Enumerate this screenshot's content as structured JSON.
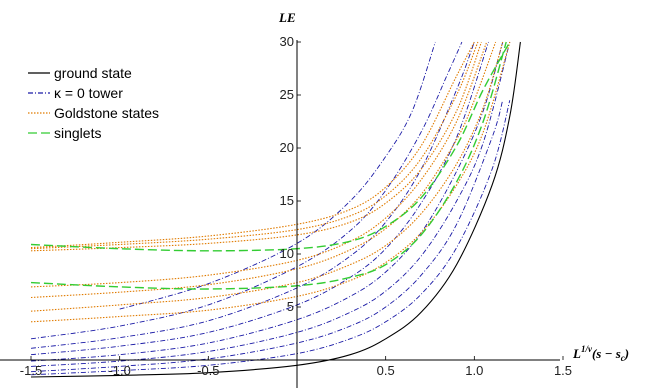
{
  "chart_data": {
    "type": "line",
    "xlabel": "L^{1/ν}(s − s_c)",
    "ylabel": "LE",
    "xlim": [
      -1.5,
      1.5
    ],
    "ylim": [
      -1.8,
      30
    ],
    "x_ticks": [
      "-1.5",
      "-1.0",
      "-0.5",
      "0.5",
      "1.0",
      "1.5"
    ],
    "y_ticks": [
      "5",
      "10",
      "15",
      "20",
      "25",
      "30"
    ],
    "legend": {
      "position": "top-left",
      "entries": [
        {
          "label": "ground state",
          "color": "#000000",
          "style": "solid"
        },
        {
          "label": "κ = 0 tower",
          "color": "#1a1aa6",
          "style": "dashdot"
        },
        {
          "label": "Goldstone states",
          "color": "#e07b00",
          "style": "dotted"
        },
        {
          "label": "singlets",
          "color": "#33cc33",
          "style": "dashed"
        }
      ]
    },
    "series": [
      {
        "group": "ground state",
        "color": "#000000",
        "style": "solid",
        "x": [
          -1.5,
          -1.0,
          -0.5,
          0.0,
          0.3,
          0.5,
          0.7,
          0.9,
          1.1,
          1.2,
          1.26
        ],
        "y": [
          -1.6,
          -1.45,
          -1.2,
          -0.5,
          0.5,
          2.0,
          4.5,
          9.0,
          16.5,
          23.0,
          30.0
        ]
      },
      {
        "group": "κ = 0 tower",
        "color": "#1a1aa6",
        "style": "dashdot",
        "x": [
          -1.5,
          -1.0,
          -0.5,
          0.0,
          0.3,
          0.5,
          0.7,
          0.9,
          1.1,
          1.2
        ],
        "y": [
          -1.4,
          -1.0,
          -0.5,
          0.6,
          2.0,
          3.6,
          6.2,
          10.6,
          18.0,
          24.5
        ]
      },
      {
        "group": "κ = 0 tower",
        "color": "#1a1aa6",
        "style": "dashdot",
        "x": [
          -1.5,
          -1.0,
          -0.5,
          0.0,
          0.3,
          0.5,
          0.7,
          0.9,
          1.1,
          1.16
        ],
        "y": [
          -1.1,
          -0.6,
          0.1,
          1.6,
          3.2,
          5.0,
          8.0,
          12.8,
          21.0,
          24.5
        ]
      },
      {
        "group": "κ = 0 tower",
        "color": "#1a1aa6",
        "style": "dashdot",
        "x": [
          -1.5,
          -1.0,
          -0.5,
          0.0,
          0.3,
          0.5,
          0.7,
          0.9,
          1.05,
          1.2
        ],
        "y": [
          -0.6,
          -0.1,
          0.8,
          2.6,
          4.5,
          6.5,
          9.8,
          15.0,
          20.5,
          30.0
        ]
      },
      {
        "group": "κ = 0 tower",
        "color": "#1a1aa6",
        "style": "dashdot",
        "x": [
          -1.5,
          -1.0,
          -0.5,
          0.0,
          0.3,
          0.5,
          0.7,
          0.9,
          1.05,
          1.16
        ],
        "y": [
          -0.1,
          0.5,
          1.6,
          3.8,
          6.0,
          8.3,
          12.0,
          17.8,
          23.5,
          30.0
        ]
      },
      {
        "group": "κ = 0 tower",
        "color": "#1a1aa6",
        "style": "dashdot",
        "x": [
          -1.5,
          -1.0,
          -0.5,
          0.0,
          0.3,
          0.5,
          0.7,
          0.9,
          1.08
        ],
        "y": [
          0.5,
          1.3,
          2.6,
          5.2,
          7.8,
          10.5,
          14.8,
          21.0,
          30.0
        ]
      },
      {
        "group": "κ = 0 tower",
        "color": "#1a1aa6",
        "style": "dashdot",
        "x": [
          -1.5,
          -1.0,
          -0.5,
          0.0,
          0.3,
          0.5,
          0.7,
          0.9,
          1.0
        ],
        "y": [
          1.1,
          2.1,
          3.7,
          6.8,
          9.8,
          13.0,
          18.0,
          25.5,
          30.0
        ]
      },
      {
        "group": "κ = 0 tower",
        "color": "#1a1aa6",
        "style": "dashdot",
        "x": [
          -1.5,
          -1.0,
          -0.5,
          0.0,
          0.3,
          0.5,
          0.7,
          0.85,
          0.93
        ],
        "y": [
          2.0,
          3.2,
          5.2,
          8.8,
          12.2,
          16.0,
          21.5,
          27.0,
          30.0
        ]
      },
      {
        "group": "κ = 0 tower",
        "color": "#1a1aa6",
        "style": "dashdot",
        "x": [
          -1.0,
          -0.5,
          0.0,
          0.3,
          0.5,
          0.65,
          0.78
        ],
        "y": [
          4.8,
          7.2,
          11.0,
          15.0,
          19.2,
          23.5,
          30.0
        ]
      },
      {
        "group": "Goldstone states",
        "color": "#e07b00",
        "style": "dotted",
        "x": [
          -1.5,
          -1.0,
          -0.5,
          0.0,
          0.3,
          0.5,
          0.7,
          0.9,
          1.05,
          1.2
        ],
        "y": [
          3.6,
          4.1,
          4.7,
          6.0,
          7.5,
          9.2,
          12.0,
          16.5,
          21.5,
          30.0
        ]
      },
      {
        "group": "Goldstone states",
        "color": "#e07b00",
        "style": "dotted",
        "x": [
          -1.5,
          -1.0,
          -0.5,
          0.0,
          0.3,
          0.5,
          0.7,
          0.9,
          1.05,
          1.16
        ],
        "y": [
          4.6,
          5.2,
          5.9,
          7.3,
          9.0,
          10.8,
          13.8,
          18.5,
          23.8,
          30.0
        ]
      },
      {
        "group": "Goldstone states",
        "color": "#e07b00",
        "style": "dotted",
        "x": [
          -1.5,
          -1.0,
          -0.5,
          0.0,
          0.3,
          0.5,
          0.7,
          0.9,
          1.0,
          1.12
        ],
        "y": [
          5.9,
          6.4,
          7.1,
          8.6,
          10.4,
          12.4,
          15.6,
          20.8,
          24.5,
          30.0
        ]
      },
      {
        "group": "Goldstone states",
        "color": "#e07b00",
        "style": "dotted",
        "x": [
          -1.5,
          -1.0,
          -0.5,
          0.0,
          0.3,
          0.5,
          0.7,
          0.9,
          1.07
        ],
        "y": [
          6.9,
          7.3,
          8.0,
          9.4,
          11.2,
          13.4,
          17.0,
          22.5,
          30.0
        ]
      },
      {
        "group": "Goldstone states",
        "color": "#e07b00",
        "style": "dotted",
        "x": [
          -1.5,
          -1.0,
          -0.5,
          0.0,
          0.3,
          0.5,
          0.7,
          0.9,
          1.04
        ],
        "y": [
          10.3,
          10.6,
          11.0,
          11.8,
          13.0,
          14.8,
          18.0,
          23.5,
          30.0
        ]
      },
      {
        "group": "Goldstone states",
        "color": "#e07b00",
        "style": "dotted",
        "x": [
          -1.5,
          -1.0,
          -0.5,
          0.0,
          0.3,
          0.5,
          0.7,
          0.9,
          1.02
        ],
        "y": [
          10.5,
          10.9,
          11.4,
          12.3,
          13.6,
          15.5,
          19.0,
          25.0,
          30.0
        ]
      },
      {
        "group": "Goldstone states",
        "color": "#e07b00",
        "style": "dotted",
        "x": [
          -1.5,
          -1.0,
          -0.5,
          0.0,
          0.3,
          0.5,
          0.7,
          0.9,
          1.0
        ],
        "y": [
          10.6,
          11.1,
          11.7,
          12.8,
          14.2,
          16.3,
          20.2,
          26.8,
          30.0
        ]
      },
      {
        "group": "singlets",
        "color": "#33cc33",
        "style": "dashed",
        "x": [
          -1.5,
          -1.0,
          -0.5,
          0.0,
          0.3,
          0.5,
          0.7,
          0.9,
          1.05,
          1.18
        ],
        "y": [
          7.3,
          6.9,
          6.7,
          7.0,
          7.8,
          9.0,
          11.8,
          16.8,
          22.5,
          30.0
        ]
      },
      {
        "group": "singlets",
        "color": "#33cc33",
        "style": "dashed",
        "x": [
          -1.5,
          -1.0,
          -0.5,
          0.0,
          0.3,
          0.5,
          0.7,
          0.9,
          1.05,
          1.2
        ],
        "y": [
          10.9,
          10.5,
          10.3,
          10.5,
          11.2,
          12.6,
          15.3,
          20.2,
          25.5,
          30.0
        ]
      }
    ]
  },
  "colors": {
    "axis": "#000000",
    "background": "#ffffff"
  }
}
